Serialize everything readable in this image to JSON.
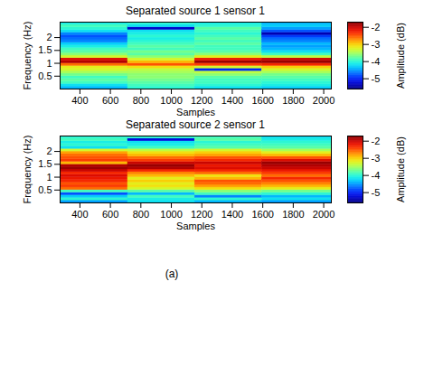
{
  "chart_data": [
    {
      "type": "heatmap",
      "title": "Separated source 1 sensor 1",
      "x_label": "Samples",
      "y_label": "Frequency (Hz)",
      "xlim": [
        270,
        2050
      ],
      "xticks": [
        400,
        600,
        800,
        1000,
        1200,
        1400,
        1600,
        1800,
        2000
      ],
      "ylim": [
        0,
        2.6
      ],
      "yticks": [
        0.5,
        1,
        1.5,
        2
      ],
      "color": "jet",
      "cells": {
        "x_edges": [
          270,
          715,
          1155,
          1595,
          2050
        ],
        "y_edges": [
          0,
          0.1,
          0.2,
          0.3,
          0.4,
          0.5,
          0.6,
          0.7,
          0.8,
          0.9,
          1.0,
          1.1,
          1.2,
          1.3,
          1.4,
          1.5,
          1.6,
          1.7,
          1.8,
          1.9,
          2.0,
          2.1,
          2.2,
          2.3,
          2.4,
          2.5,
          2.6
        ],
        "values": [
          [
            -4.4,
            -4.2,
            -3.9,
            -3.8,
            -3.9,
            -3.7,
            -3.5,
            -3.3,
            -3.2,
            -2.6,
            -1.9,
            -2.1,
            -3.3,
            -3.6,
            -3.8,
            -3.9,
            -4.1,
            -4.3,
            -4.6,
            -4.7,
            -4.8,
            -4.6,
            -4.2,
            -4.0,
            -3.9,
            -4.1
          ],
          [
            -4.0,
            -3.9,
            -3.8,
            -3.7,
            -3.6,
            -3.6,
            -3.5,
            -3.4,
            -3.1,
            -2.5,
            -2.9,
            -3.3,
            -3.6,
            -3.8,
            -3.7,
            -3.9,
            -3.8,
            -3.9,
            -4.0,
            -4.1,
            -4.0,
            -4.1,
            -4.2,
            -5.3,
            -4.2,
            -4.0
          ],
          [
            -4.2,
            -4.0,
            -3.9,
            -3.9,
            -3.8,
            -3.6,
            -3.4,
            -5.0,
            -3.3,
            -2.4,
            -1.8,
            -2.2,
            -3.2,
            -3.6,
            -3.8,
            -3.9,
            -3.9,
            -3.8,
            -3.9,
            -3.8,
            -3.9,
            -4.0,
            -3.9,
            -3.8,
            -4.0,
            -4.1
          ],
          [
            -4.3,
            -4.1,
            -4.0,
            -3.9,
            -3.8,
            -3.7,
            -3.5,
            -3.3,
            -3.0,
            -2.3,
            -1.8,
            -2.0,
            -3.4,
            -3.9,
            -4.2,
            -4.4,
            -4.5,
            -4.4,
            -4.6,
            -4.7,
            -4.9,
            -5.4,
            -4.8,
            -4.5,
            -4.3,
            -4.4
          ]
        ]
      },
      "colorbar": {
        "label": "Amplitude (dB)",
        "range": [
          -5.6,
          -1.7
        ],
        "ticks": [
          -5,
          -4,
          -3,
          -2
        ]
      }
    },
    {
      "type": "heatmap",
      "title": "Separated source 2 sensor 1",
      "x_label": "Samples",
      "y_label": "Frequency (Hz)",
      "xlim": [
        270,
        2050
      ],
      "xticks": [
        400,
        600,
        800,
        1000,
        1200,
        1400,
        1600,
        1800,
        2000
      ],
      "ylim": [
        0,
        2.6
      ],
      "yticks": [
        0.5,
        1,
        1.5,
        2
      ],
      "color": "jet",
      "cells": {
        "x_edges": [
          270,
          715,
          1155,
          1595,
          2050
        ],
        "y_edges": [
          0,
          0.1,
          0.2,
          0.3,
          0.4,
          0.5,
          0.6,
          0.7,
          0.8,
          0.9,
          1.0,
          1.1,
          1.2,
          1.3,
          1.4,
          1.5,
          1.6,
          1.7,
          1.8,
          1.9,
          2.0,
          2.1,
          2.2,
          2.3,
          2.4,
          2.5,
          2.6
        ],
        "values": [
          [
            -4.5,
            -4.0,
            -4.3,
            -4.8,
            -3.9,
            -2.6,
            -2.4,
            -2.5,
            -2.3,
            -2.2,
            -2.1,
            -2.3,
            -2.0,
            -1.8,
            -1.9,
            -2.9,
            -2.4,
            -2.5,
            -2.6,
            -2.8,
            -3.3,
            -4.2,
            -4.0,
            -4.1,
            -3.9,
            -4.0
          ],
          [
            -4.2,
            -4.1,
            -3.9,
            -4.4,
            -3.8,
            -3.3,
            -3.1,
            -3.2,
            -3.0,
            -3.2,
            -2.9,
            -2.7,
            -2.3,
            -1.9,
            -1.8,
            -2.0,
            -2.4,
            -2.6,
            -2.9,
            -3.1,
            -3.4,
            -3.9,
            -4.1,
            -4.2,
            -5.2,
            -4.0
          ],
          [
            -4.4,
            -4.0,
            -4.6,
            -3.9,
            -3.6,
            -3.1,
            -2.8,
            -2.6,
            -2.5,
            -2.9,
            -3.1,
            -2.6,
            -2.3,
            -2.1,
            -2.2,
            -2.0,
            -2.3,
            -2.5,
            -2.8,
            -3.0,
            -3.3,
            -3.8,
            -3.9,
            -4.0,
            -3.8,
            -3.9
          ],
          [
            -4.5,
            -4.2,
            -4.4,
            -4.0,
            -3.7,
            -3.2,
            -2.9,
            -2.7,
            -2.5,
            -2.3,
            -2.6,
            -2.4,
            -2.2,
            -2.0,
            -1.9,
            -1.8,
            -2.1,
            -2.5,
            -2.9,
            -3.2,
            -3.5,
            -3.8,
            -3.9,
            -4.0,
            -4.1,
            -4.2
          ]
        ]
      },
      "colorbar": {
        "label": "Amplitude (dB)",
        "range": [
          -5.6,
          -1.7
        ],
        "ticks": [
          -5,
          -4,
          -3,
          -2
        ]
      }
    }
  ],
  "caption": "(a)"
}
